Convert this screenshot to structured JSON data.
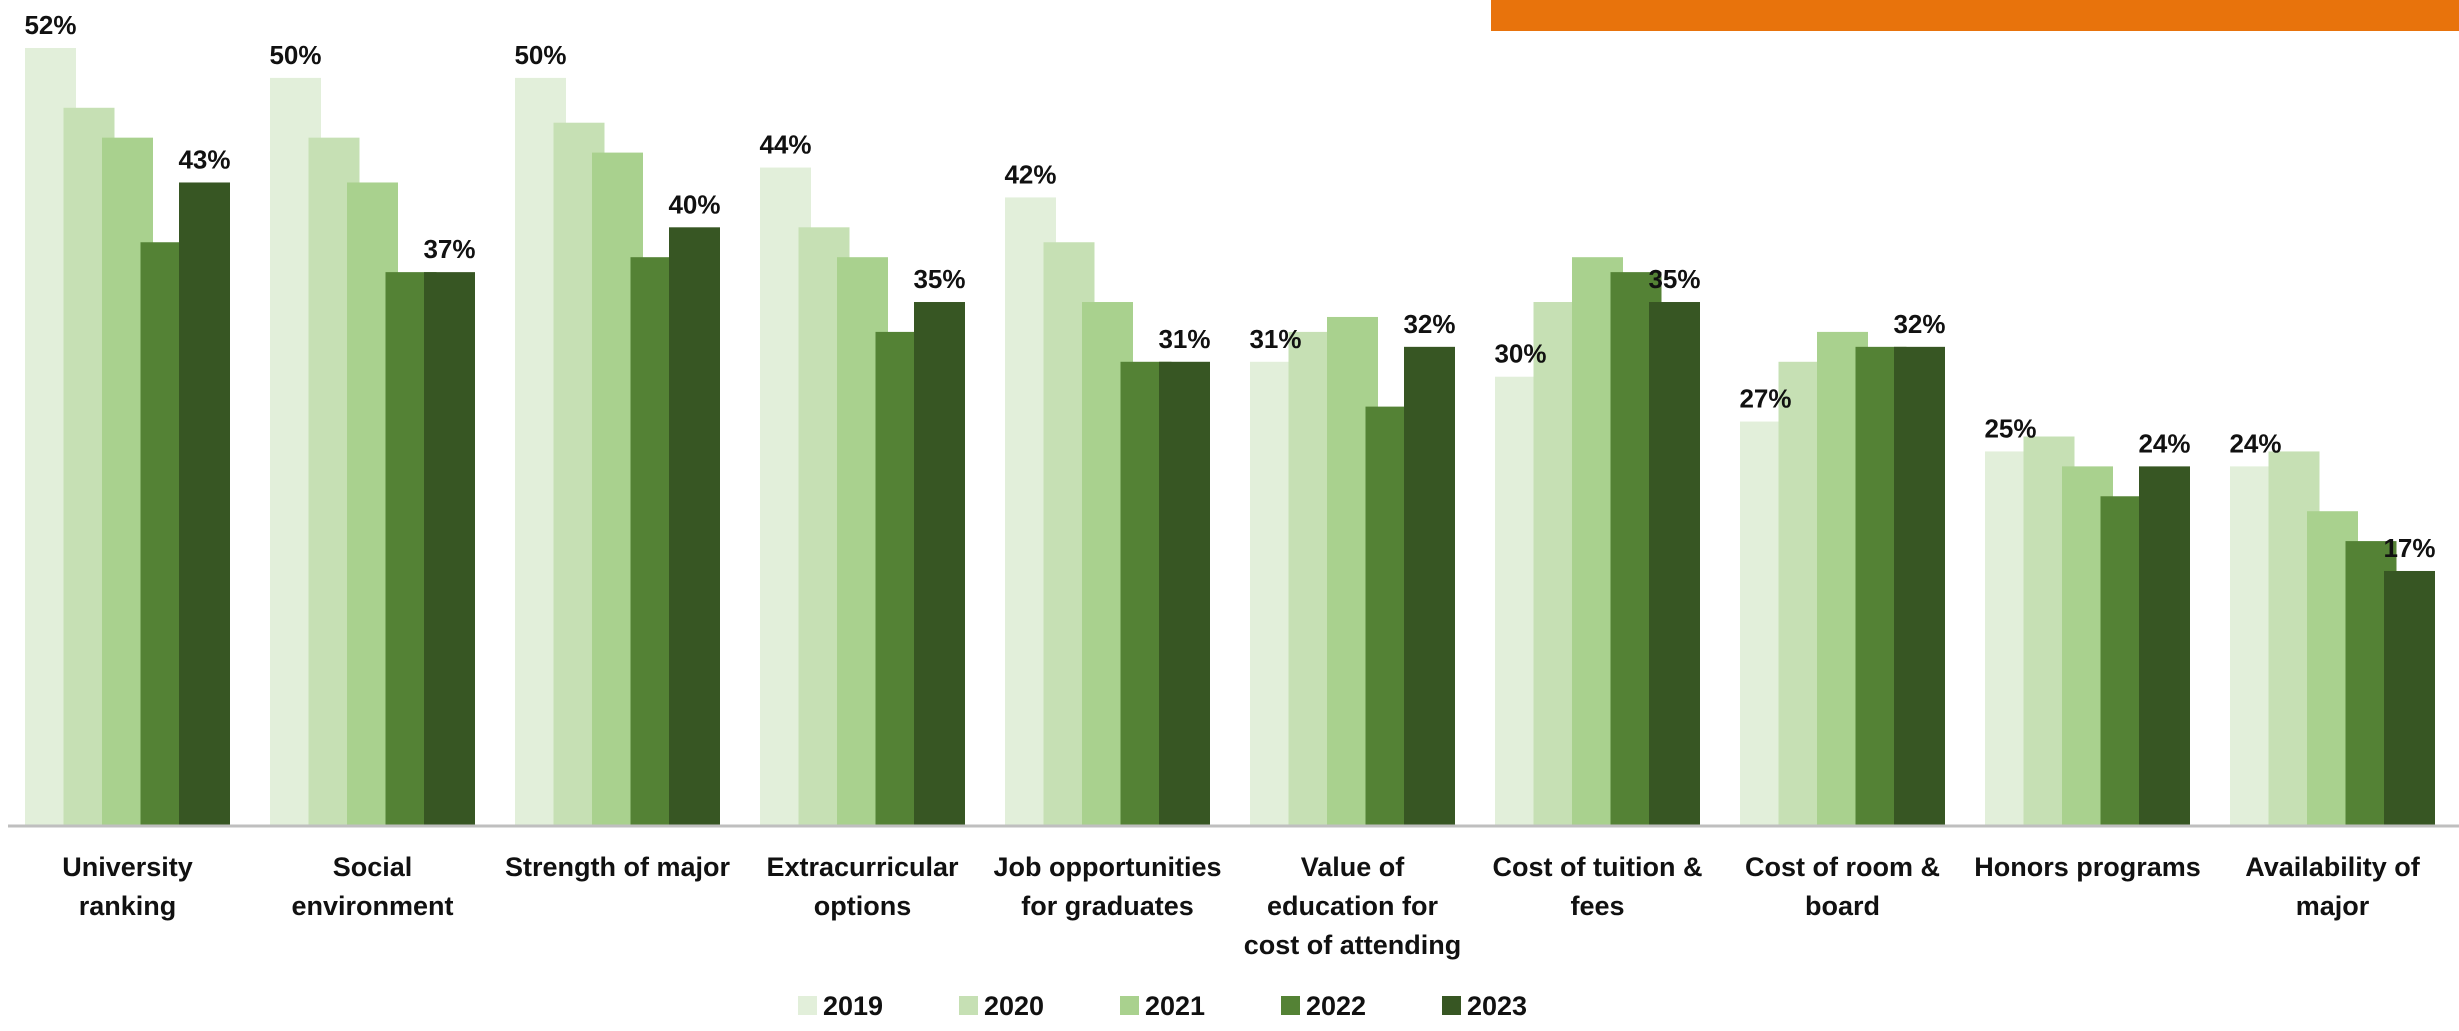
{
  "banner": {
    "color": "#E8730C"
  },
  "chart_data": {
    "type": "bar",
    "categories": [
      "University ranking",
      "Social environment",
      "Strength of major",
      "Extracurricular options",
      "Job opportunities for graduates",
      "Value of education for cost of attending",
      "Cost of tuition & fees",
      "Cost of room & board",
      "Honors programs",
      "Availability of major"
    ],
    "category_label_lines": [
      [
        "University",
        "ranking"
      ],
      [
        "Social",
        "environment"
      ],
      [
        "Strength of major"
      ],
      [
        "Extracurricular",
        "options"
      ],
      [
        "Job opportunities",
        "for graduates"
      ],
      [
        "Value of",
        "education for",
        "cost of attending"
      ],
      [
        "Cost of tuition &",
        "fees"
      ],
      [
        "Cost of room &",
        "board"
      ],
      [
        "Honors programs"
      ],
      [
        "Availability of",
        "major"
      ]
    ],
    "series": [
      {
        "name": "2019",
        "color": "#E2EFDA",
        "values": [
          52,
          50,
          50,
          44,
          42,
          31,
          30,
          27,
          25,
          24
        ]
      },
      {
        "name": "2020",
        "color": "#C6E0B4",
        "values": [
          48,
          46,
          47,
          40,
          39,
          33,
          35,
          31,
          26,
          25
        ]
      },
      {
        "name": "2021",
        "color": "#A9D18E",
        "values": [
          46,
          43,
          45,
          38,
          35,
          34,
          38,
          33,
          24,
          21
        ]
      },
      {
        "name": "2022",
        "color": "#548235",
        "values": [
          39,
          37,
          38,
          33,
          31,
          28,
          37,
          32,
          22,
          19
        ]
      },
      {
        "name": "2023",
        "color": "#375623",
        "values": [
          43,
          37,
          40,
          35,
          31,
          32,
          35,
          32,
          24,
          17
        ]
      }
    ],
    "data_labels": [
      {
        "category": 0,
        "series": 0,
        "text": "52%"
      },
      {
        "category": 0,
        "series": 4,
        "text": "43%"
      },
      {
        "category": 1,
        "series": 0,
        "text": "50%"
      },
      {
        "category": 1,
        "series": 4,
        "text": "37%"
      },
      {
        "category": 2,
        "series": 0,
        "text": "50%"
      },
      {
        "category": 2,
        "series": 4,
        "text": "40%"
      },
      {
        "category": 3,
        "series": 0,
        "text": "44%"
      },
      {
        "category": 3,
        "series": 4,
        "text": "35%"
      },
      {
        "category": 4,
        "series": 0,
        "text": "42%"
      },
      {
        "category": 4,
        "series": 4,
        "text": "31%"
      },
      {
        "category": 5,
        "series": 0,
        "text": "31%"
      },
      {
        "category": 5,
        "series": 4,
        "text": "32%"
      },
      {
        "category": 6,
        "series": 0,
        "text": "30%"
      },
      {
        "category": 6,
        "series": 4,
        "text": "35%"
      },
      {
        "category": 7,
        "series": 0,
        "text": "27%"
      },
      {
        "category": 7,
        "series": 4,
        "text": "32%"
      },
      {
        "category": 8,
        "series": 0,
        "text": "25%"
      },
      {
        "category": 8,
        "series": 4,
        "text": "24%"
      },
      {
        "category": 9,
        "series": 0,
        "text": "24%"
      },
      {
        "category": 9,
        "series": 4,
        "text": "17%"
      }
    ],
    "ylim": [
      0,
      55
    ],
    "grid": false,
    "legend_position": "bottom",
    "axis_color": "#BFBFBF"
  }
}
